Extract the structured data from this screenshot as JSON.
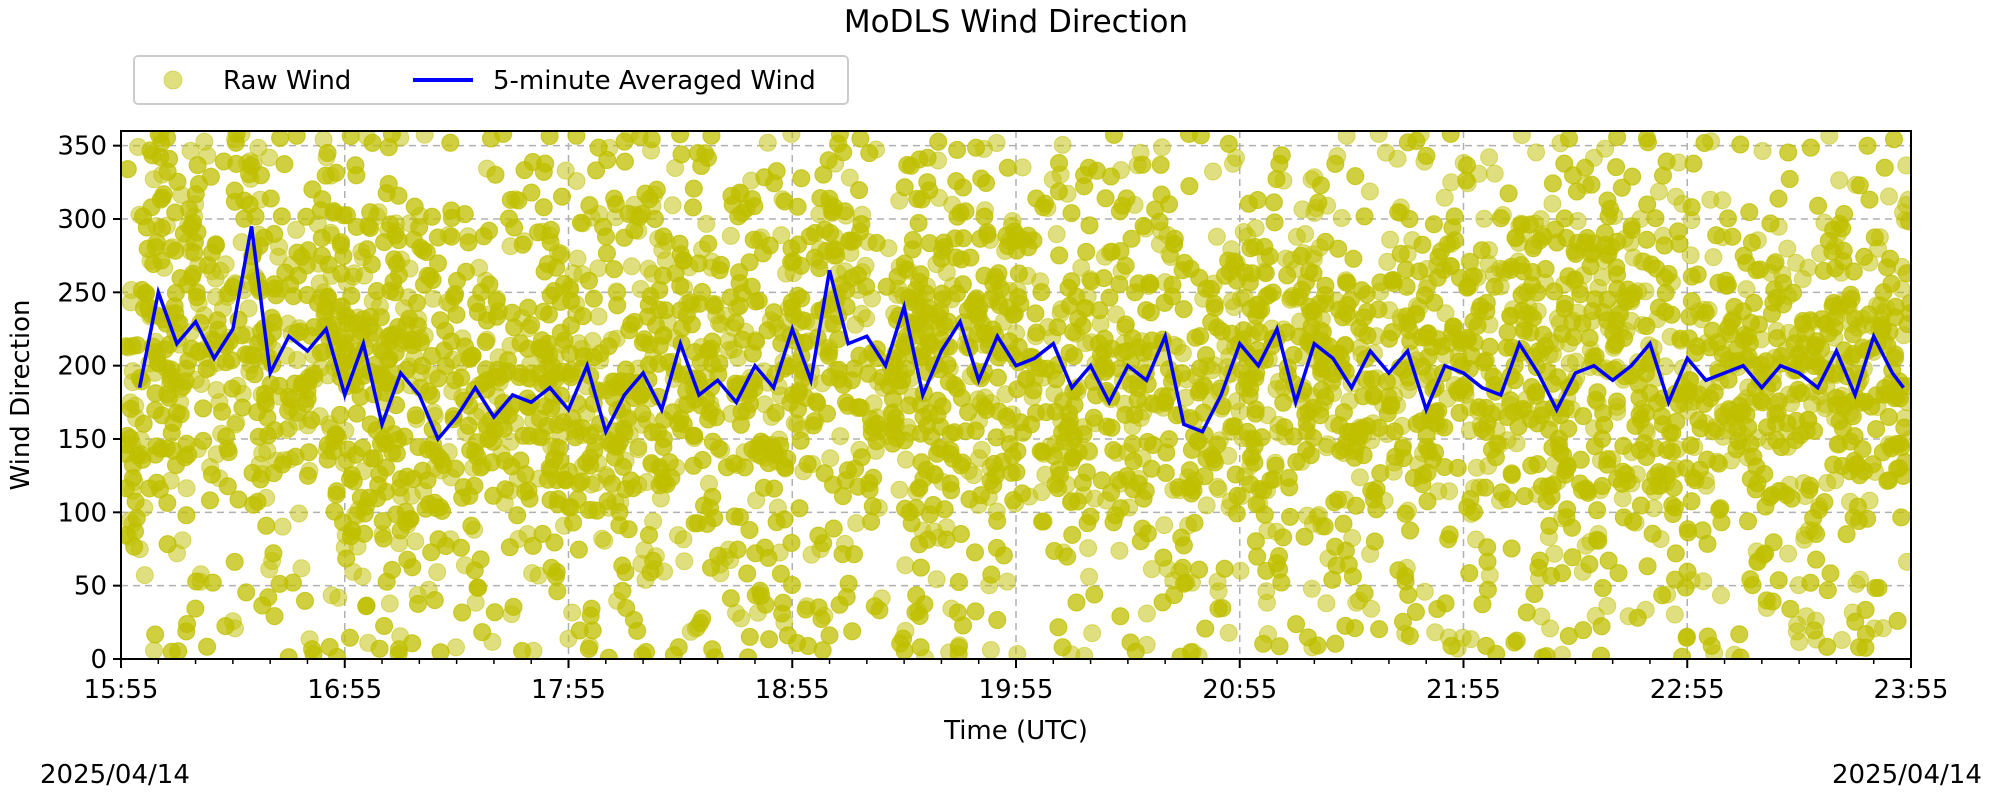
{
  "chart_data": {
    "type": "scatter",
    "title": "MoDLS Wind Direction",
    "xlabel": "Time (UTC)",
    "ylabel": "Wind Direction",
    "xlim": [
      "15:55",
      "23:55"
    ],
    "ylim": [
      0,
      360
    ],
    "x_ticks": [
      "15:55",
      "16:55",
      "17:55",
      "18:55",
      "19:55",
      "20:55",
      "21:55",
      "22:55",
      "23:55"
    ],
    "y_ticks": [
      0,
      50,
      100,
      150,
      200,
      250,
      300,
      350
    ],
    "grid": true,
    "legend": {
      "placement": "top-left, above plot"
    },
    "start_date": "2025/04/14",
    "end_date": "2025/04/14",
    "colors": {
      "raw": "#bfbf00",
      "averaged": "#0000ff",
      "grid": "#b0b0b0"
    },
    "series": [
      {
        "name": "Raw Wind",
        "style": "scatter",
        "description": "dense 1-second samples spread across the full 0-360 range",
        "y_range": [
          0,
          360
        ]
      },
      {
        "name": "5-minute Averaged Wind",
        "style": "line",
        "x": [
          "16:00",
          "16:05",
          "16:10",
          "16:15",
          "16:20",
          "16:25",
          "16:30",
          "16:35",
          "16:40",
          "16:45",
          "16:50",
          "16:55",
          "17:00",
          "17:05",
          "17:10",
          "17:15",
          "17:20",
          "17:25",
          "17:30",
          "17:35",
          "17:40",
          "17:45",
          "17:50",
          "17:55",
          "18:00",
          "18:05",
          "18:10",
          "18:15",
          "18:20",
          "18:25",
          "18:30",
          "18:35",
          "18:40",
          "18:45",
          "18:50",
          "18:55",
          "19:00",
          "19:05",
          "19:10",
          "19:15",
          "19:20",
          "19:25",
          "19:30",
          "19:35",
          "19:40",
          "19:45",
          "19:50",
          "19:55",
          "20:00",
          "20:05",
          "20:10",
          "20:15",
          "20:20",
          "20:25",
          "20:30",
          "20:35",
          "20:40",
          "20:45",
          "20:50",
          "20:55",
          "21:00",
          "21:05",
          "21:10",
          "21:15",
          "21:20",
          "21:25",
          "21:30",
          "21:35",
          "21:40",
          "21:45",
          "21:50",
          "21:55",
          "22:00",
          "22:05",
          "22:10",
          "22:15",
          "22:20",
          "22:25",
          "22:30",
          "22:35",
          "22:40",
          "22:45",
          "22:50",
          "22:55",
          "23:00",
          "23:05",
          "23:10",
          "23:15",
          "23:20",
          "23:25",
          "23:30",
          "23:35",
          "23:40",
          "23:45",
          "23:50",
          "23:53"
        ],
        "values": [
          185,
          250,
          215,
          230,
          205,
          225,
          295,
          195,
          220,
          210,
          225,
          180,
          215,
          160,
          195,
          180,
          150,
          165,
          185,
          165,
          180,
          175,
          185,
          170,
          200,
          155,
          180,
          195,
          170,
          215,
          180,
          190,
          175,
          200,
          185,
          225,
          190,
          265,
          215,
          220,
          200,
          240,
          180,
          210,
          230,
          190,
          220,
          200,
          205,
          215,
          185,
          200,
          175,
          200,
          190,
          220,
          160,
          155,
          180,
          215,
          200,
          225,
          175,
          215,
          205,
          185,
          210,
          195,
          210,
          170,
          200,
          195,
          185,
          180,
          215,
          195,
          170,
          195,
          200,
          190,
          200,
          215,
          175,
          205,
          190,
          195,
          200,
          185,
          200,
          195,
          185,
          210,
          180,
          220,
          195,
          185
        ]
      }
    ]
  }
}
